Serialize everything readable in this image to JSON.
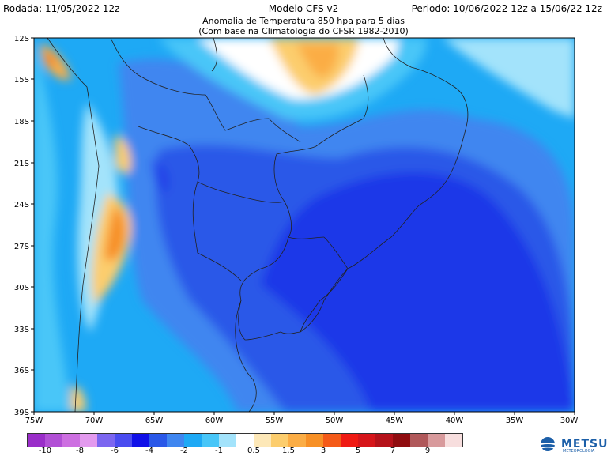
{
  "header": {
    "left": "Rodada: 11/05/2022 12z",
    "center": "Modelo CFS v2",
    "right": "Periodo: 10/06/2022 12z a 15/06/22 12z",
    "subtitle1": "Anomalia de Temperatura 850 hpa para 5 dias",
    "subtitle2": "(Com base na Climatologia do CFSR 1982-2010)"
  },
  "axes": {
    "lat_labels": [
      "12S",
      "15S",
      "18S",
      "21S",
      "24S",
      "27S",
      "30S",
      "33S",
      "36S",
      "39S"
    ],
    "lon_labels": [
      "75W",
      "70W",
      "65W",
      "60W",
      "55W",
      "50W",
      "45W",
      "40W",
      "35W",
      "30W"
    ]
  },
  "colorbar": {
    "colors": [
      "#9a2ec9",
      "#b250d6",
      "#cd6fe1",
      "#e39aee",
      "#7c66f0",
      "#4a4cf0",
      "#1010e8",
      "#2a58e8",
      "#3f86f0",
      "#1ea9f5",
      "#48c6f8",
      "#a3e3fb",
      "#ffffff",
      "#fde8b8",
      "#fccd6d",
      "#fbad45",
      "#f79026",
      "#f45a18",
      "#ef1a13",
      "#d6151a",
      "#b5121a",
      "#900d10",
      "#b0585a",
      "#d89a9c",
      "#f7dede"
    ],
    "labels": [
      "-10",
      "-8",
      "-6",
      "-4",
      "-2",
      "-1",
      "0.5",
      "1.5",
      "3",
      "5",
      "7",
      "9"
    ]
  },
  "logo": {
    "name": "METSUL",
    "sub": "METEOROLOGIA"
  }
}
